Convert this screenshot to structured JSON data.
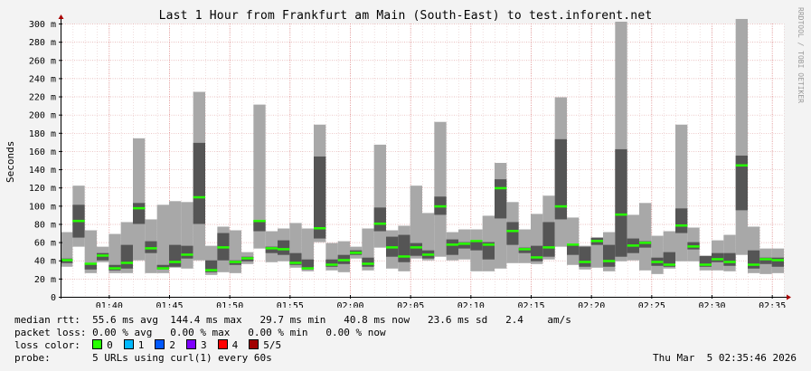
{
  "title": "Last 1 Hour from Frankfurt am Main (South-East) to test.inforent.net",
  "watermark": "RRDTOOL / TOBI OETIKER",
  "info": {
    "median_label": "median rtt:",
    "median_text": "55.6 ms avg  144.4 ms max   29.7 ms min   40.8 ms now   23.6 ms sd   2.4    am/s",
    "loss_label": "packet loss:",
    "loss_text": "0.00 % avg   0.00 % max   0.00 % min   0.00 % now",
    "loss_color_label": "loss color:",
    "loss_colors": [
      {
        "label": "0",
        "color": "#26ff00"
      },
      {
        "label": "1",
        "color": "#00b8ff"
      },
      {
        "label": "2",
        "color": "#0059ff"
      },
      {
        "label": "3",
        "color": "#7e00ff"
      },
      {
        "label": "4",
        "color": "#ff0000"
      },
      {
        "label": "5/5",
        "color": "#a10000"
      }
    ],
    "probe_label": "probe:",
    "probe_text": "5 URLs using curl(1) every 60s",
    "timestamp": "Thu Mar  5 02:35:46 2026"
  },
  "chart_data": {
    "type": "bar",
    "title": "Last 1 Hour from Frankfurt am Main (South-East) to test.inforent.net",
    "ylabel": "Seconds",
    "ylim": [
      0,
      300
    ],
    "yticks": [
      0,
      20,
      40,
      60,
      80,
      100,
      120,
      140,
      160,
      180,
      200,
      220,
      240,
      260,
      280,
      300
    ],
    "ytick_labels": [
      "0",
      "20 m",
      "40 m",
      "60 m",
      "80 m",
      "100 m",
      "120 m",
      "140 m",
      "160 m",
      "180 m",
      "200 m",
      "220 m",
      "240 m",
      "260 m",
      "280 m",
      "300 m"
    ],
    "xtick_labels": [
      "01:40",
      "01:45",
      "01:50",
      "01:55",
      "02:00",
      "02:05",
      "02:10",
      "02:15",
      "02:20",
      "02:25",
      "02:30",
      "02:35"
    ],
    "xtick_index": [
      4,
      9,
      14,
      19,
      24,
      29,
      34,
      39,
      44,
      49,
      54,
      59
    ],
    "grid": true,
    "colors": {
      "spread_outer": "#a8a8a8",
      "spread_inner": "#555555",
      "median": "#26ff00"
    },
    "median": [
      40,
      83,
      36,
      45,
      31,
      37,
      97,
      53,
      31,
      38,
      46,
      109,
      29,
      54,
      38,
      42,
      83,
      53,
      52,
      37,
      31,
      75,
      35,
      40,
      48,
      36,
      80,
      54,
      44,
      54,
      46,
      99,
      57,
      58,
      61,
      57,
      119,
      72,
      52,
      43,
      54,
      99,
      57,
      38,
      61,
      39,
      90,
      56,
      59,
      38,
      35,
      78,
      55,
      35,
      41,
      38,
      144,
      35,
      41,
      40
    ],
    "p_lo": [
      37,
      65,
      30,
      40,
      29,
      31,
      80,
      48,
      30,
      33,
      42,
      80,
      27,
      40,
      35,
      39,
      72,
      48,
      46,
      35,
      30,
      64,
      33,
      36,
      46,
      33,
      72,
      44,
      38,
      45,
      42,
      90,
      46,
      53,
      51,
      41,
      86,
      57,
      48,
      39,
      44,
      85,
      46,
      33,
      57,
      33,
      44,
      48,
      54,
      34,
      33,
      70,
      52,
      33,
      38,
      34,
      95,
      31,
      36,
      33
    ],
    "p_hi": [
      42,
      101,
      37,
      48,
      35,
      57,
      103,
      61,
      35,
      57,
      56,
      169,
      40,
      70,
      40,
      44,
      84,
      55,
      62,
      48,
      41,
      154,
      41,
      46,
      51,
      43,
      98,
      66,
      68,
      59,
      51,
      110,
      63,
      60,
      62,
      60,
      129,
      82,
      54,
      56,
      82,
      173,
      57,
      55,
      65,
      57,
      162,
      64,
      61,
      43,
      49,
      97,
      60,
      45,
      48,
      48,
      155,
      51,
      43,
      43
    ],
    "o_lo": [
      33,
      55,
      26,
      38,
      26,
      26,
      40,
      26,
      26,
      32,
      31,
      40,
      24,
      27,
      26,
      36,
      53,
      38,
      39,
      32,
      28,
      60,
      29,
      27,
      42,
      29,
      54,
      31,
      28,
      42,
      40,
      44,
      40,
      41,
      28,
      28,
      31,
      37,
      37,
      36,
      41,
      55,
      35,
      30,
      32,
      28,
      39,
      40,
      29,
      25,
      31,
      39,
      39,
      29,
      29,
      28,
      46,
      26,
      25,
      26
    ],
    "o_hi": [
      71,
      122,
      73,
      55,
      69,
      82,
      174,
      85,
      101,
      105,
      104,
      225,
      56,
      77,
      73,
      49,
      211,
      72,
      75,
      81,
      75,
      189,
      59,
      61,
      55,
      75,
      167,
      73,
      78,
      122,
      92,
      192,
      71,
      74,
      74,
      89,
      147,
      104,
      74,
      91,
      111,
      219,
      87,
      56,
      65,
      71,
      302,
      90,
      103,
      67,
      72,
      189,
      76,
      44,
      62,
      68,
      305,
      77,
      53,
      53
    ]
  }
}
